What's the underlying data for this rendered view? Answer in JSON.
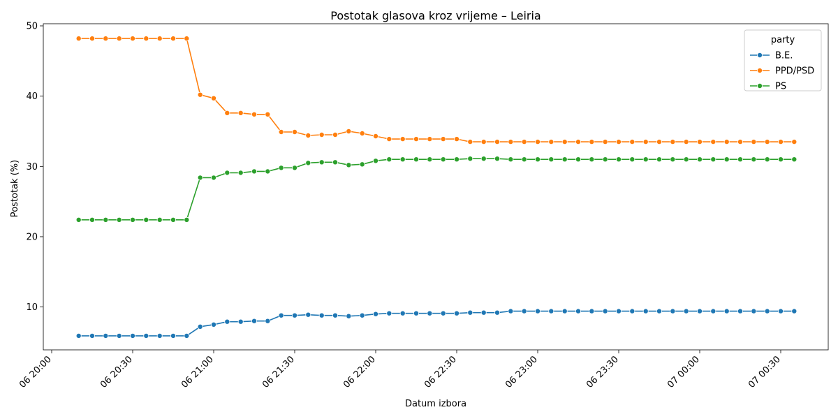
{
  "chart_data": {
    "type": "line",
    "title": "Postotak glasova kroz vrijeme – Leiria",
    "xlabel": "Datum izbora",
    "ylabel": "Postotak (%)",
    "x": [
      "20:10",
      "20:15",
      "20:20",
      "20:25",
      "20:30",
      "20:35",
      "20:40",
      "20:45",
      "20:50",
      "20:55",
      "21:00",
      "21:05",
      "21:10",
      "21:15",
      "21:20",
      "21:25",
      "21:30",
      "21:35",
      "21:40",
      "21:45",
      "21:50",
      "21:55",
      "22:00",
      "22:05",
      "22:10",
      "22:15",
      "22:20",
      "22:25",
      "22:30",
      "22:35",
      "22:40",
      "22:45",
      "22:50",
      "22:55",
      "23:00",
      "23:05",
      "23:10",
      "23:15",
      "23:20",
      "23:25",
      "23:30",
      "23:35",
      "23:40",
      "23:45",
      "23:50",
      "23:55",
      "00:00",
      "00:05",
      "00:10",
      "00:15",
      "00:20",
      "00:25",
      "00:30",
      "00:35"
    ],
    "x_minutes_note": "",
    "xticks": [
      "06 20:00",
      "06 20:30",
      "06 21:00",
      "06 21:30",
      "06 22:00",
      "06 22:30",
      "06 23:00",
      "06 23:30",
      "07 00:00",
      "07 00:30"
    ],
    "yticks": [
      10,
      20,
      30,
      40,
      50
    ],
    "ylim": [
      3.9,
      50.3
    ],
    "legend_title": "party",
    "legend_position": "top-right",
    "series": [
      {
        "name": "B.E.",
        "color": "#1f77b4",
        "values": [
          5.9,
          5.9,
          5.9,
          5.9,
          5.9,
          5.9,
          5.9,
          5.9,
          5.9,
          7.2,
          7.5,
          7.9,
          7.9,
          8.0,
          8.0,
          8.8,
          8.8,
          8.9,
          8.8,
          8.8,
          8.7,
          8.8,
          9.0,
          9.1,
          9.1,
          9.1,
          9.1,
          9.1,
          9.1,
          9.2,
          9.2,
          9.2,
          9.4,
          9.4,
          9.4,
          9.4,
          9.4,
          9.4,
          9.4,
          9.4,
          9.4,
          9.4,
          9.4,
          9.4,
          9.4,
          9.4,
          9.4,
          9.4,
          9.4,
          9.4,
          9.4,
          9.4,
          9.4,
          9.4
        ]
      },
      {
        "name": "PPD/PSD",
        "color": "#ff7f0e",
        "values": [
          48.2,
          48.2,
          48.2,
          48.2,
          48.2,
          48.2,
          48.2,
          48.2,
          48.2,
          40.2,
          39.7,
          37.6,
          37.6,
          37.4,
          37.4,
          34.9,
          34.9,
          34.4,
          34.5,
          34.5,
          35.0,
          34.7,
          34.3,
          33.9,
          33.9,
          33.9,
          33.9,
          33.9,
          33.9,
          33.5,
          33.5,
          33.5,
          33.5,
          33.5,
          33.5,
          33.5,
          33.5,
          33.5,
          33.5,
          33.5,
          33.5,
          33.5,
          33.5,
          33.5,
          33.5,
          33.5,
          33.5,
          33.5,
          33.5,
          33.5,
          33.5,
          33.5,
          33.5,
          33.5
        ]
      },
      {
        "name": "PS",
        "color": "#2ca02c",
        "values": [
          22.4,
          22.4,
          22.4,
          22.4,
          22.4,
          22.4,
          22.4,
          22.4,
          22.4,
          28.4,
          28.4,
          29.1,
          29.1,
          29.3,
          29.3,
          29.8,
          29.8,
          30.5,
          30.6,
          30.6,
          30.2,
          30.3,
          30.8,
          31.0,
          31.0,
          31.0,
          31.0,
          31.0,
          31.0,
          31.1,
          31.1,
          31.1,
          31.0,
          31.0,
          31.0,
          31.0,
          31.0,
          31.0,
          31.0,
          31.0,
          31.0,
          31.0,
          31.0,
          31.0,
          31.0,
          31.0,
          31.0,
          31.0,
          31.0,
          31.0,
          31.0,
          31.0,
          31.0,
          31.0
        ]
      }
    ]
  }
}
